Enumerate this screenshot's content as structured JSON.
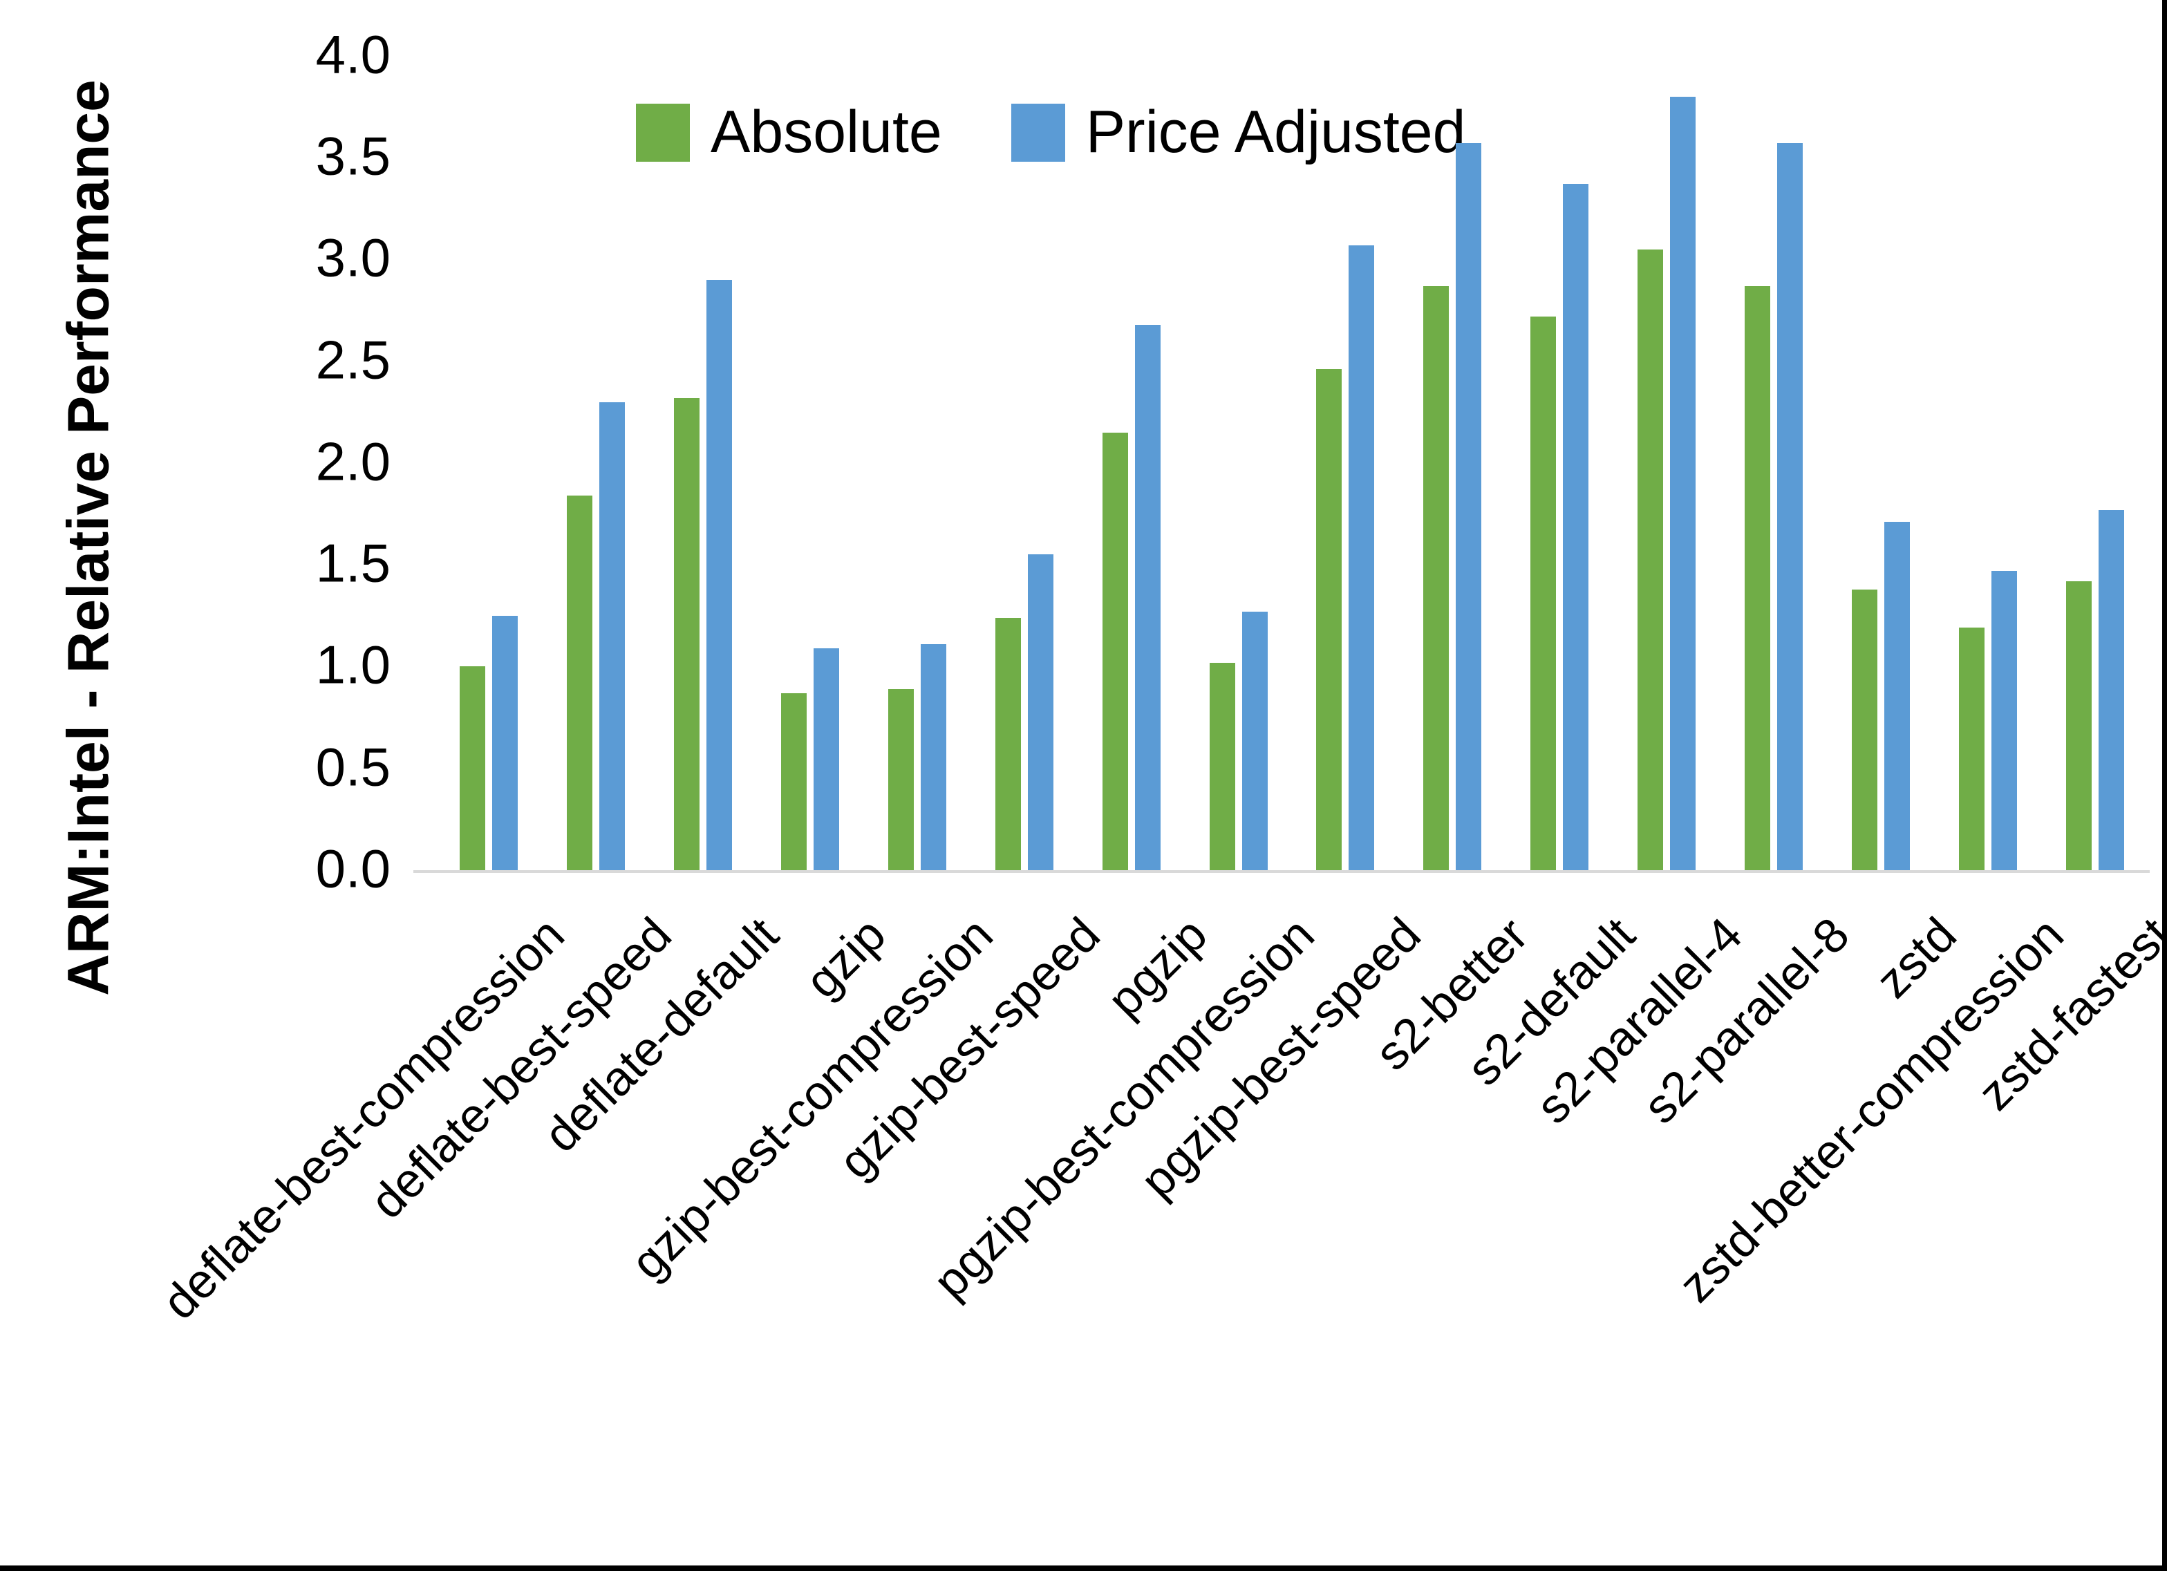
{
  "chart_data": {
    "type": "bar",
    "title": "",
    "xlabel": "",
    "ylabel": "ARM:Intel - Relative Performance",
    "ylim": [
      0.0,
      4.0
    ],
    "ytick_step": 0.5,
    "ytick_labels": [
      "0.0",
      "0.5",
      "1.0",
      "1.5",
      "2.0",
      "2.5",
      "3.0",
      "3.5",
      "4.0"
    ],
    "grid": false,
    "legend_position": "top-center",
    "categories": [
      "deflate-best-compression",
      "deflate-best-speed",
      "deflate-default",
      "gzip",
      "gzip-best-compression",
      "gzip-best-speed",
      "pgzip",
      "pgzip-best-compression",
      "pgzip-best-speed",
      "s2-better",
      "s2-default",
      "s2-parallel-4",
      "s2-parallel-8",
      "zstd",
      "zstd-better-compression",
      "zstd-fastest"
    ],
    "series": [
      {
        "name": "Absolute",
        "color": "#70AD47",
        "values": [
          1.0,
          1.84,
          2.32,
          0.87,
          0.89,
          1.24,
          2.15,
          1.02,
          2.46,
          2.87,
          2.72,
          3.05,
          2.87,
          1.38,
          1.19,
          1.42
        ]
      },
      {
        "name": "Price Adjusted",
        "color": "#5B9BD5",
        "values": [
          1.25,
          2.3,
          2.9,
          1.09,
          1.11,
          1.55,
          2.68,
          1.27,
          3.07,
          3.57,
          3.37,
          3.8,
          3.57,
          1.71,
          1.47,
          1.77
        ]
      }
    ]
  },
  "colors": {
    "background": "#FFFFFF",
    "axis_line": "#D9D9D9",
    "text": "#000000",
    "frame": "#000000"
  }
}
